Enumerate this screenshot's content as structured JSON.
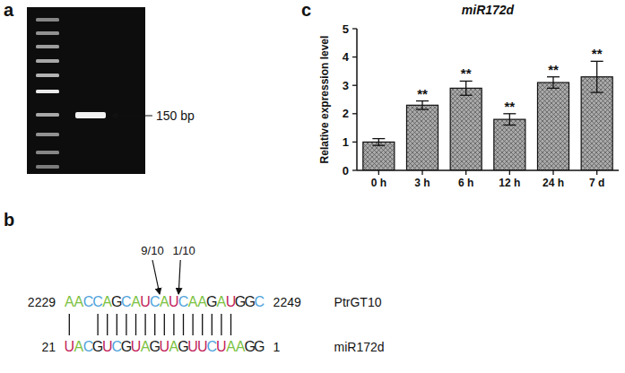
{
  "panel_labels": [
    "a",
    "b",
    "c"
  ],
  "gel": {
    "band_label": "150 bp"
  },
  "alignment": {
    "target": {
      "name": "PtrGT10",
      "start": 2229,
      "end": 2249,
      "sequence": "AACCAGCAUCAUCAAGAUGGC"
    },
    "mirna": {
      "name": "miR172d",
      "start": 21,
      "end": 1,
      "sequence": "UACGUCGUAGUAGUUCUAAGG"
    },
    "paired_positions": [
      1,
      4,
      5,
      6,
      7,
      8,
      9,
      10,
      11,
      12,
      13,
      14,
      15,
      16,
      17,
      18
    ],
    "cleavage_sites": [
      {
        "label": "9/10",
        "after_position": 10
      },
      {
        "label": "1/10",
        "after_position": 12
      }
    ],
    "nucleotide_colors": {
      "A": "#7cc242",
      "C": "#4fa3dc",
      "G": "#1a1a1a",
      "U": "#c21f5b"
    }
  },
  "chart_data": {
    "type": "bar",
    "title": "miR172d",
    "y_label": "Relative expression level",
    "categories": [
      "0 h",
      "3 h",
      "6 h",
      "12 h",
      "24 h",
      "7 d"
    ],
    "values": [
      1.0,
      2.3,
      2.9,
      1.8,
      3.1,
      3.3
    ],
    "errors": [
      0.12,
      0.15,
      0.25,
      0.2,
      0.2,
      0.55
    ],
    "significance": [
      null,
      "**",
      "**",
      "**",
      "**",
      "**"
    ],
    "color": "#a9a9a9",
    "ylim": [
      0,
      5
    ],
    "yticks": [
      0,
      1,
      2,
      3,
      4,
      5
    ]
  }
}
